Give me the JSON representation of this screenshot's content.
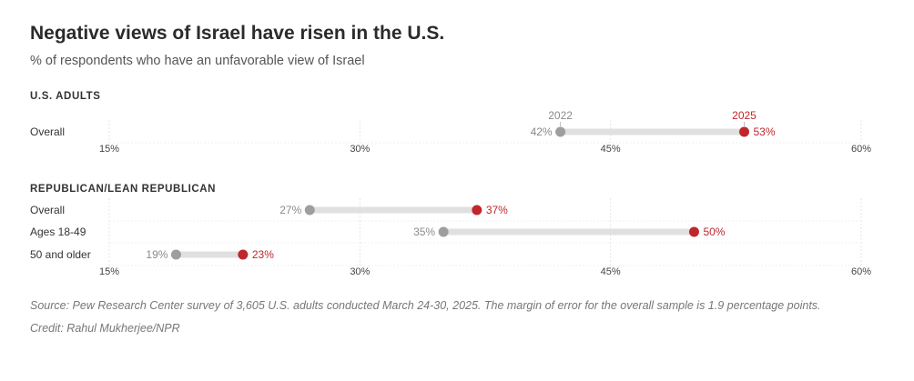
{
  "header": {
    "title": "Negative views of Israel have risen in the U.S.",
    "subtitle": "% of respondents who have an unfavorable view of Israel"
  },
  "footer": {
    "source": "Source: Pew Research Center survey of 3,605 U.S. adults conducted March 24-30, 2025. The margin of error for the overall sample is 1.9 percentage points.",
    "credit": "Credit: Rahul Mukherjee/NPR"
  },
  "colors": {
    "start": "#9e9e9e",
    "end": "#c0262b",
    "bar": "#e0e0e0",
    "grid": "#e6e6e6"
  },
  "chart_data": {
    "type": "dumbbell",
    "title": "Negative views of Israel have risen in the U.S.",
    "subtitle": "% of respondents who have an unfavorable view of Israel",
    "xlim": [
      15,
      60
    ],
    "x_ticks": [
      15,
      30,
      45,
      60
    ],
    "x_tick_labels": [
      "15%",
      "30%",
      "45%",
      "60%"
    ],
    "series_names": [
      "2022",
      "2025"
    ],
    "panels": [
      {
        "title": "U.S. ADULTS",
        "rows": [
          {
            "label": "Overall",
            "start": 42,
            "end": 53,
            "start_label": "42%",
            "end_label": "53%"
          }
        ]
      },
      {
        "title": "REPUBLICAN/LEAN REPUBLICAN",
        "rows": [
          {
            "label": "Overall",
            "start": 27,
            "end": 37,
            "start_label": "27%",
            "end_label": "37%"
          },
          {
            "label": "Ages 18-49",
            "start": 35,
            "end": 50,
            "start_label": "35%",
            "end_label": "50%"
          },
          {
            "label": "50 and older",
            "start": 19,
            "end": 23,
            "start_label": "19%",
            "end_label": "23%"
          }
        ]
      }
    ]
  }
}
